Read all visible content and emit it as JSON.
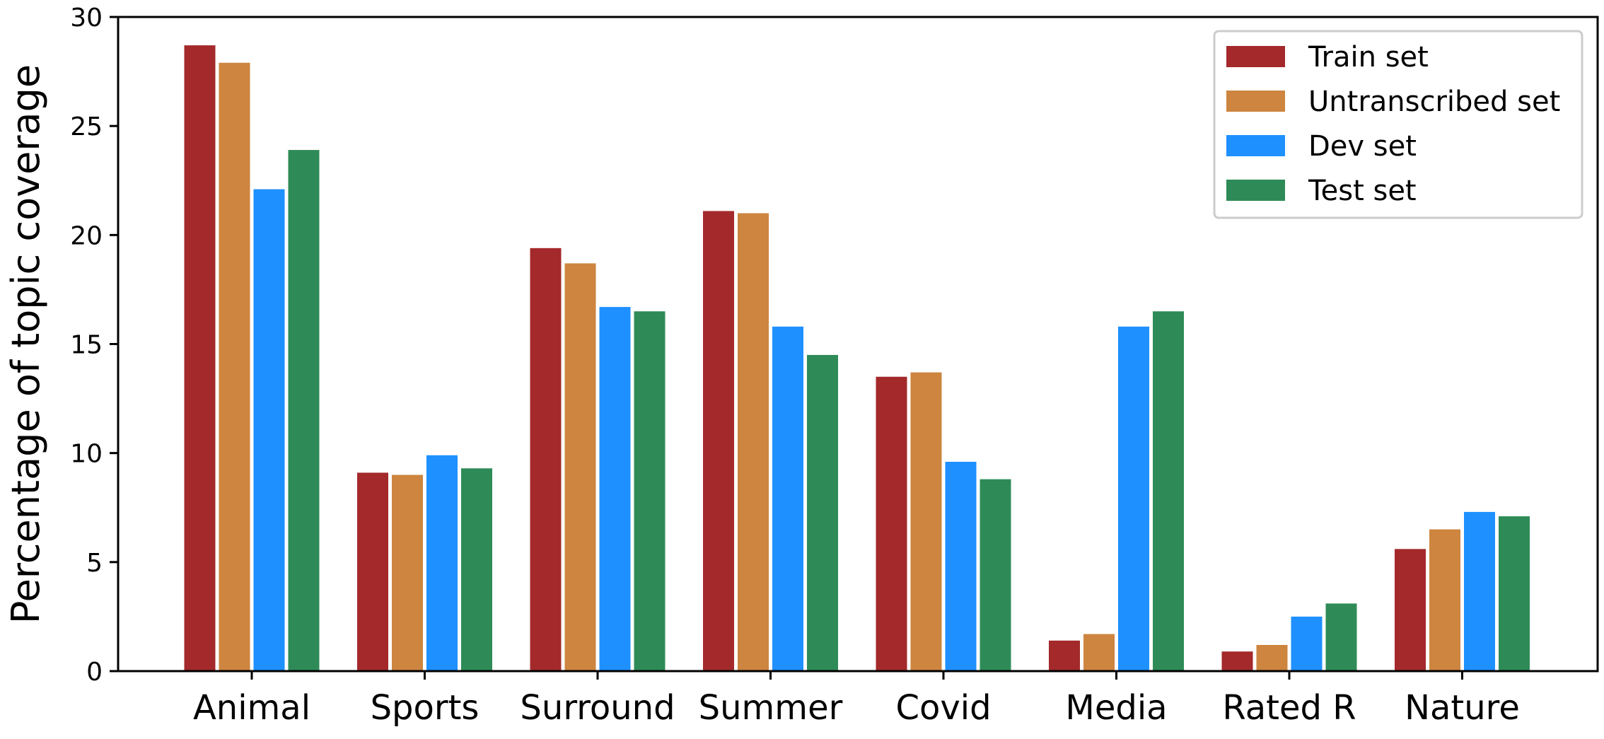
{
  "chart_data": {
    "type": "bar",
    "title": "",
    "xlabel": "",
    "ylabel": "Percentage of topic coverage",
    "ylim": [
      0,
      30
    ],
    "yticks": [
      0,
      5,
      10,
      15,
      20,
      25,
      30
    ],
    "categories": [
      "Animal",
      "Sports",
      "Surround",
      "Summer",
      "Covid",
      "Media",
      "Rated R",
      "Nature"
    ],
    "series": [
      {
        "name": "Train set",
        "color": "#a4292b",
        "values": [
          28.7,
          9.1,
          19.4,
          21.1,
          13.5,
          1.4,
          0.9,
          5.6
        ]
      },
      {
        "name": "Untranscribed set",
        "color": "#cd853f",
        "values": [
          27.9,
          9.0,
          18.7,
          21.0,
          13.7,
          1.7,
          1.2,
          6.5
        ]
      },
      {
        "name": "Dev set",
        "color": "#1e90ff",
        "values": [
          22.1,
          9.9,
          16.7,
          15.8,
          9.6,
          15.8,
          2.5,
          7.3
        ]
      },
      {
        "name": "Test set",
        "color": "#2e8b57",
        "values": [
          23.9,
          9.3,
          16.5,
          14.5,
          8.8,
          16.5,
          3.1,
          7.1
        ]
      }
    ],
    "grid": false,
    "legend_position": "top-right"
  }
}
